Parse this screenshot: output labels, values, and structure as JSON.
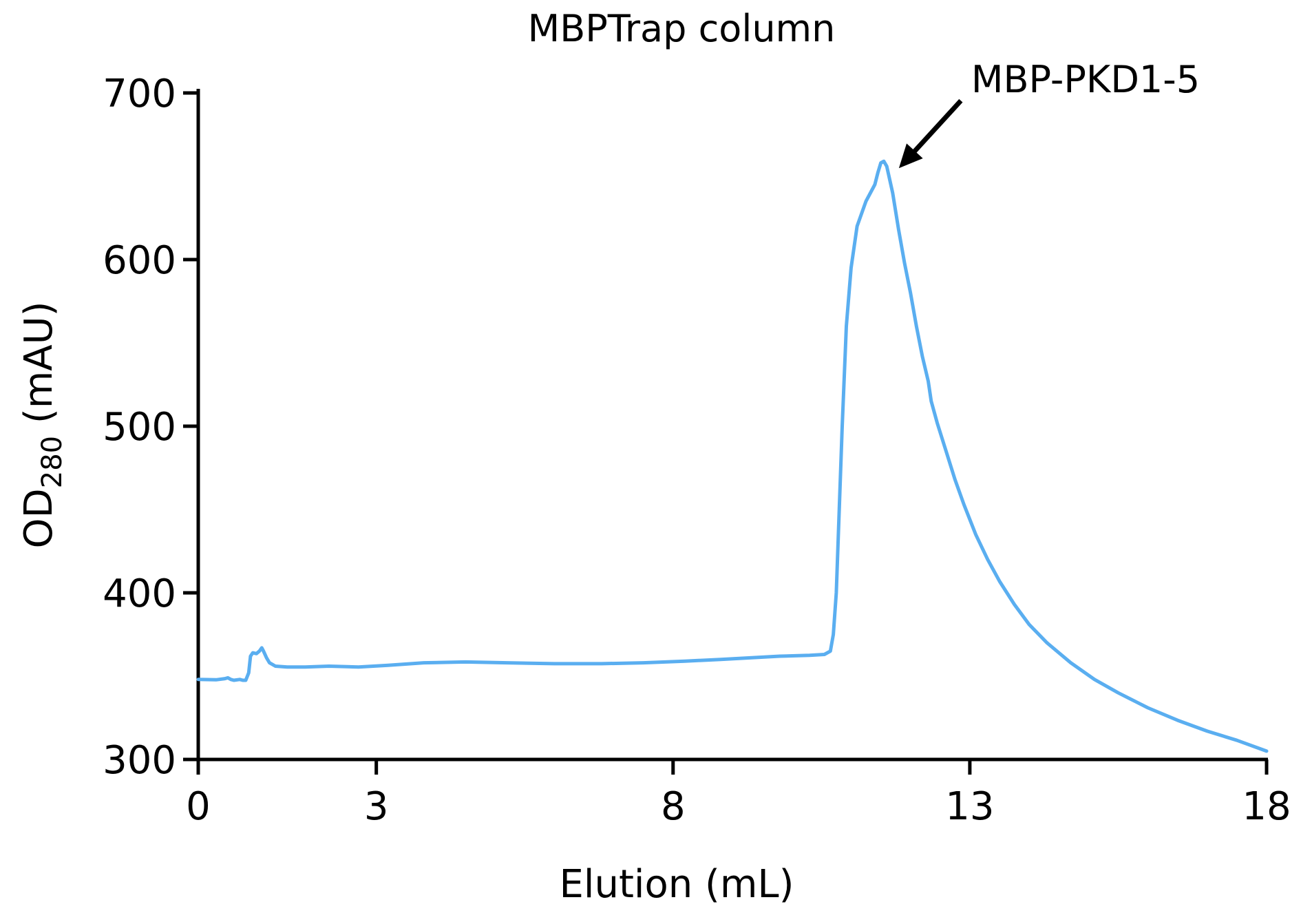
{
  "chart_data": {
    "type": "line",
    "title": "MBPTrap column",
    "xlabel": "Elution (mL)",
    "ylabel": {
      "main": "OD",
      "subscript": "280",
      "unit": " (mAU)"
    },
    "xlim": [
      0,
      18
    ],
    "ylim": [
      300,
      700
    ],
    "x_ticks": [
      0,
      3,
      8,
      13,
      18
    ],
    "x_tick_labels": [
      "0",
      "3",
      "8",
      "13",
      "18"
    ],
    "y_ticks": [
      300,
      400,
      500,
      600,
      700
    ],
    "y_tick_labels": [
      "300",
      "400",
      "500",
      "600",
      "700"
    ],
    "grid": false,
    "legend": "none",
    "series": [
      {
        "color": "#5aaef0",
        "points": [
          [
            0.0,
            348
          ],
          [
            0.3,
            347.8
          ],
          [
            0.45,
            348.5
          ],
          [
            0.5,
            349
          ],
          [
            0.55,
            348
          ],
          [
            0.6,
            347.5
          ],
          [
            0.7,
            348
          ],
          [
            0.75,
            347.5
          ],
          [
            0.8,
            347.5
          ],
          [
            0.85,
            352
          ],
          [
            0.88,
            362
          ],
          [
            0.92,
            364
          ],
          [
            0.98,
            363.5
          ],
          [
            1.03,
            365
          ],
          [
            1.07,
            367
          ],
          [
            1.1,
            365
          ],
          [
            1.15,
            361
          ],
          [
            1.2,
            358
          ],
          [
            1.3,
            356
          ],
          [
            1.5,
            355.5
          ],
          [
            1.8,
            355.5
          ],
          [
            2.2,
            356
          ],
          [
            2.7,
            355.5
          ],
          [
            3.2,
            356.5
          ],
          [
            3.8,
            358
          ],
          [
            4.5,
            358.5
          ],
          [
            5.2,
            358
          ],
          [
            6.0,
            357.5
          ],
          [
            6.8,
            357.5
          ],
          [
            7.5,
            358
          ],
          [
            8.2,
            359
          ],
          [
            8.8,
            360
          ],
          [
            9.3,
            361
          ],
          [
            9.8,
            362
          ],
          [
            10.3,
            362.5
          ],
          [
            10.55,
            363
          ],
          [
            10.65,
            365
          ],
          [
            10.7,
            375
          ],
          [
            10.75,
            400
          ],
          [
            10.8,
            450
          ],
          [
            10.85,
            500
          ],
          [
            10.92,
            560
          ],
          [
            11.0,
            595
          ],
          [
            11.1,
            620
          ],
          [
            11.25,
            635
          ],
          [
            11.4,
            645
          ],
          [
            11.45,
            652
          ],
          [
            11.5,
            658
          ],
          [
            11.55,
            659
          ],
          [
            11.6,
            656
          ],
          [
            11.7,
            640
          ],
          [
            11.8,
            618
          ],
          [
            11.9,
            598
          ],
          [
            12.0,
            580
          ],
          [
            12.1,
            560
          ],
          [
            12.2,
            542
          ],
          [
            12.3,
            527
          ],
          [
            12.35,
            515
          ],
          [
            12.45,
            502
          ],
          [
            12.6,
            485
          ],
          [
            12.75,
            468
          ],
          [
            12.9,
            453
          ],
          [
            13.1,
            435
          ],
          [
            13.3,
            420
          ],
          [
            13.5,
            407
          ],
          [
            13.75,
            393
          ],
          [
            14.0,
            381
          ],
          [
            14.3,
            370
          ],
          [
            14.7,
            358
          ],
          [
            15.1,
            348
          ],
          [
            15.5,
            340
          ],
          [
            16.0,
            331
          ],
          [
            16.5,
            323.5
          ],
          [
            17.0,
            317
          ],
          [
            17.5,
            311.5
          ],
          [
            18.0,
            305
          ]
        ]
      }
    ],
    "annotations": [
      {
        "text": "MBP-PKD1-5",
        "points_to": [
          11.55,
          659
        ],
        "arrow": true
      }
    ]
  }
}
